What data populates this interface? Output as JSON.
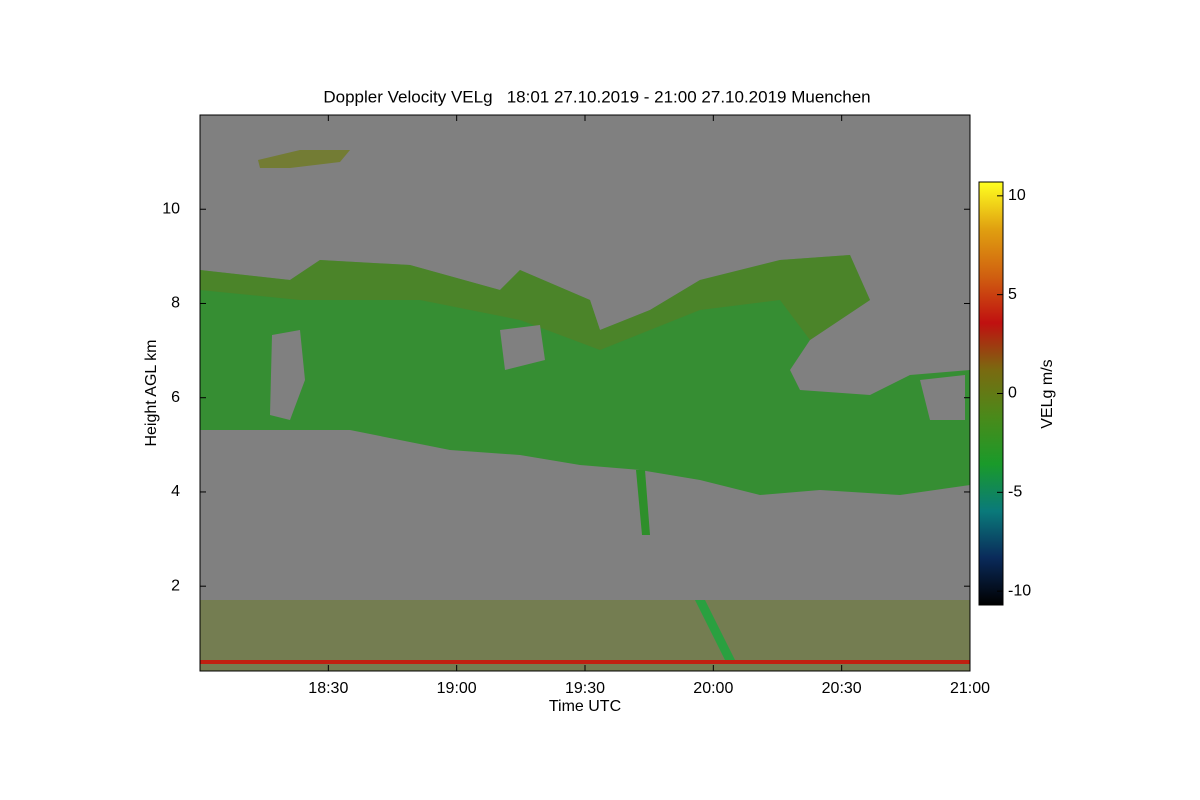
{
  "chart_data": {
    "type": "heatmap",
    "title": "Doppler Velocity VELg   18:01 27.10.2019 - 21:00 27.10.2019 Muenchen",
    "x_label": "Time UTC",
    "y_label": "Height AGL km",
    "xlim": [
      18.0,
      21.0
    ],
    "xticks": [
      {
        "value": 18.5,
        "label": "18:30"
      },
      {
        "value": 19.0,
        "label": "19:00"
      },
      {
        "value": 19.5,
        "label": "19:30"
      },
      {
        "value": 20.0,
        "label": "20:00"
      },
      {
        "value": 20.5,
        "label": "20:30"
      },
      {
        "value": 21.0,
        "label": "21:00"
      }
    ],
    "ylim": [
      0.2,
      12.0
    ],
    "yticks": [
      2,
      4,
      6,
      8,
      10
    ],
    "background_color": "#808080",
    "colorbar": {
      "label": "VELg m/s",
      "lim": [
        -10.7,
        10.7
      ],
      "ticks": [
        10,
        5,
        0,
        -5,
        -10
      ],
      "colormap": [
        "#000000",
        "#0a2a5a",
        "#0a7a7a",
        "#1a9a2a",
        "#4a8a1a",
        "#7a6a10",
        "#c01010",
        "#d06010",
        "#e0a010",
        "#ffff20"
      ]
    }
  }
}
